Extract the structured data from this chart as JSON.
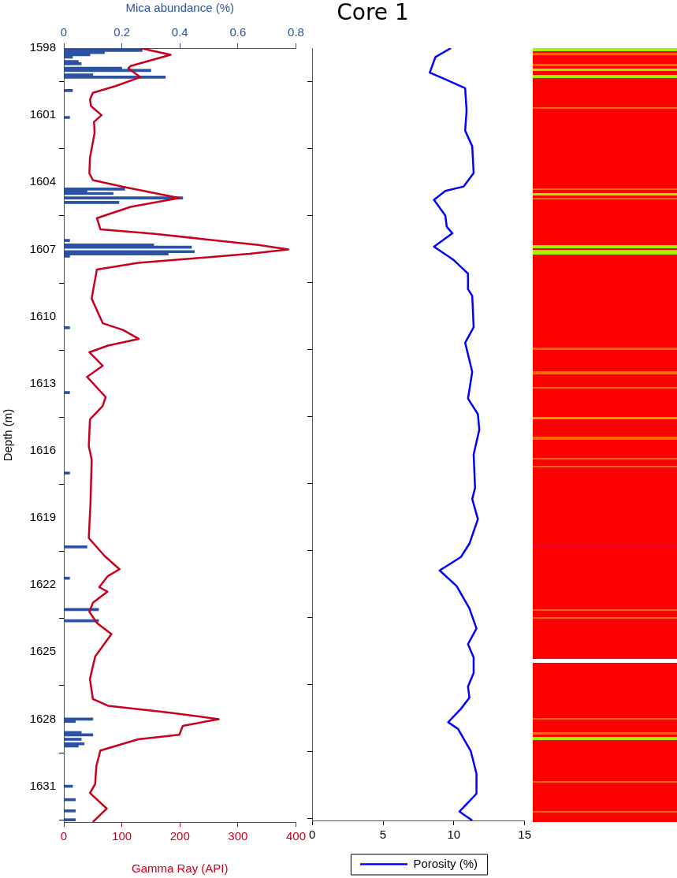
{
  "chart_data": [
    {
      "type": "line",
      "ylabel": "Depth (m)",
      "xlabel": "Gamma Ray (API)",
      "x2label": "Mica abundance (%)",
      "orientation": "horizontal",
      "ylim": [
        1632.6,
        1598
      ],
      "yticks": [
        1598,
        1601,
        1604,
        1607,
        1610,
        1613,
        1616,
        1619,
        1622,
        1625,
        1628,
        1631
      ],
      "xlim": [
        0,
        400
      ],
      "xticks": [
        0,
        100,
        200,
        300,
        400
      ],
      "x2lim": [
        0,
        0.8
      ],
      "x2ticks": [
        0,
        0.2,
        0.4,
        0.6,
        0.8
      ],
      "series": [
        {
          "type": "bar",
          "axis": "x2",
          "color": "#2b52a3",
          "x": [
            1598.1,
            1598.2,
            1598.3,
            1598.4,
            1598.6,
            1598.7,
            1598.9,
            1599.0,
            1599.2,
            1599.3,
            1599.9,
            1601.1,
            1604.3,
            1604.4,
            1604.5,
            1604.7,
            1604.9,
            1606.6,
            1606.8,
            1606.9,
            1607.1,
            1607.2,
            1607.3,
            1610.5,
            1613.4,
            1617.0,
            1620.3,
            1621.7,
            1623.1,
            1623.6,
            1628.0,
            1628.1,
            1628.6,
            1628.7,
            1628.9,
            1629.1,
            1629.2,
            1631.0,
            1631.6,
            1632.1,
            1632.5
          ],
          "values": [
            0.27,
            0.14,
            0.09,
            0.03,
            0.05,
            0.06,
            0.2,
            0.3,
            0.1,
            0.35,
            0.03,
            0.02,
            0.21,
            0.08,
            0.17,
            0.41,
            0.19,
            0.02,
            0.31,
            0.44,
            0.45,
            0.36,
            0.02,
            0.02,
            0.02,
            0.02,
            0.08,
            0.02,
            0.12,
            0.12,
            0.1,
            0.04,
            0.06,
            0.1,
            0.06,
            0.07,
            0.05,
            0.03,
            0.04,
            0.04,
            0.04
          ]
        },
        {
          "color": "#c8001e",
          "x": [
            1598.0,
            1598.3,
            1598.8,
            1598.9,
            1599.3,
            1599.7,
            1600.0,
            1600.3,
            1600.6,
            1601.0,
            1601.3,
            1601.8,
            1602.9,
            1603.6,
            1603.9,
            1604.2,
            1604.7,
            1605.1,
            1605.6,
            1606.1,
            1606.3,
            1606.8,
            1607.0,
            1607.2,
            1607.6,
            1607.9,
            1608.9,
            1609.2,
            1610.3,
            1610.6,
            1611.0,
            1611.3,
            1611.6,
            1612.2,
            1612.7,
            1613.6,
            1614.0,
            1614.6,
            1615.8,
            1616.4,
            1618.3,
            1619.9,
            1620.7,
            1621.3,
            1621.6,
            1622.1,
            1622.3,
            1622.8,
            1623.2,
            1623.7,
            1624.2,
            1625.2,
            1626.2,
            1627.1,
            1627.4,
            1627.7,
            1628.0,
            1628.3,
            1628.7,
            1628.9,
            1629.4,
            1630.1,
            1630.9,
            1631.3,
            1632.0,
            1632.6
          ],
          "values": [
            132,
            184,
            115,
            111,
            132,
            89,
            50,
            45,
            47,
            65,
            52,
            53,
            45,
            44,
            50,
            102,
            199,
            115,
            57,
            63,
            154,
            335,
            387,
            320,
            128,
            57,
            50,
            48,
            67,
            102,
            129,
            76,
            44,
            67,
            40,
            72,
            67,
            45,
            43,
            48,
            46,
            43,
            70,
            96,
            76,
            61,
            75,
            50,
            44,
            57,
            82,
            54,
            45,
            50,
            76,
            180,
            267,
            205,
            199,
            128,
            63,
            56,
            54,
            45,
            74,
            50
          ]
        }
      ]
    },
    {
      "type": "line",
      "title": "Core 1",
      "orientation": "horizontal",
      "legend": "bottom",
      "tick_labels": "x",
      "ylim": [
        1632.6,
        1598
      ],
      "yticks": [
        1598,
        1601,
        1604,
        1607,
        1610,
        1613,
        1616,
        1619,
        1622,
        1625,
        1628,
        1631
      ],
      "xlim": [
        0,
        15
      ],
      "xticks": [
        0,
        5,
        10,
        15
      ],
      "series": [
        {
          "name": "Porosity (%)",
          "color": "#0000ff",
          "x": [
            1598.0,
            1598.4,
            1599.1,
            1599.4,
            1599.8,
            1600.8,
            1601.7,
            1602.4,
            1603.6,
            1604.2,
            1604.4,
            1604.8,
            1605.5,
            1606.0,
            1606.3,
            1606.9,
            1607.5,
            1608.1,
            1608.8,
            1609.1,
            1610.5,
            1611.2,
            1612.5,
            1613.7,
            1614.4,
            1615.1,
            1616.2,
            1617.7,
            1618.2,
            1619.1,
            1620.2,
            1620.8,
            1621.4,
            1622.1,
            1623.1,
            1624.0,
            1624.7,
            1625.3,
            1626.0,
            1626.6,
            1627.1,
            1627.6,
            1628.2,
            1628.5,
            1629.5,
            1630.5,
            1631.4,
            1631.8,
            1632.2,
            1632.6
          ],
          "values": [
            9.8,
            8.7,
            8.3,
            9.4,
            10.8,
            10.9,
            10.8,
            11.3,
            11.4,
            10.7,
            9.4,
            8.6,
            9.4,
            9.5,
            9.9,
            8.6,
            10.0,
            11.0,
            11.0,
            11.3,
            11.4,
            10.8,
            11.3,
            11.0,
            11.7,
            11.8,
            11.4,
            11.5,
            11.3,
            11.7,
            11.1,
            10.5,
            9.0,
            10.2,
            11.1,
            11.6,
            11.0,
            11.4,
            11.4,
            11.0,
            11.1,
            10.5,
            9.6,
            10.3,
            11.2,
            11.6,
            11.6,
            11.0,
            10.4,
            11.3
          ]
        }
      ]
    }
  ]
}
